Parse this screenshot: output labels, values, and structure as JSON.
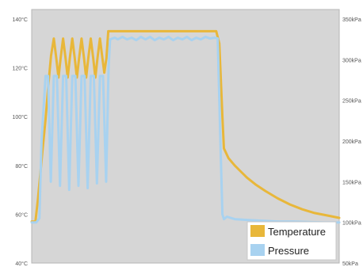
{
  "chart_data": {
    "type": "line",
    "title": "",
    "xlabel": "",
    "ylabel": "",
    "grid": false,
    "legend_position": "bottom-right",
    "x_range": [
      0,
      100
    ],
    "y_left": {
      "unit": "°C",
      "range": [
        40,
        140
      ],
      "ticks": [
        {
          "value": 140,
          "label": "140°C"
        },
        {
          "value": 120,
          "label": "120°C"
        },
        {
          "value": 100,
          "label": "100°C"
        },
        {
          "value": 80,
          "label": "80°C"
        },
        {
          "value": 60,
          "label": "60°C"
        },
        {
          "value": 40,
          "label": "40°C"
        }
      ]
    },
    "y_right": {
      "unit": "kPa",
      "range": [
        50,
        350
      ],
      "ticks": [
        {
          "value": 350,
          "label": "350kPa"
        },
        {
          "value": 300,
          "label": "300kPa"
        },
        {
          "value": 250,
          "label": "250kPa"
        },
        {
          "value": 200,
          "label": "200kPa"
        },
        {
          "value": 150,
          "label": "150kPa"
        },
        {
          "value": 100,
          "label": "100kPa"
        },
        {
          "value": 50,
          "label": "50kPa"
        }
      ]
    },
    "series": [
      {
        "name": "Temperature",
        "axis": "left",
        "color": "#E8B73A",
        "points": [
          [
            0,
            57
          ],
          [
            1.2,
            57
          ],
          [
            2,
            66
          ],
          [
            3.5,
            86
          ],
          [
            4.5,
            99
          ],
          [
            5.5,
            114
          ],
          [
            6.3,
            125
          ],
          [
            7.2,
            132
          ],
          [
            8,
            124
          ],
          [
            8.7,
            116
          ],
          [
            9.4,
            124
          ],
          [
            10.2,
            132
          ],
          [
            11,
            124
          ],
          [
            11.7,
            116
          ],
          [
            12.4,
            124
          ],
          [
            13.2,
            132
          ],
          [
            14,
            124
          ],
          [
            14.7,
            116
          ],
          [
            15.4,
            124
          ],
          [
            16.2,
            132
          ],
          [
            17,
            124
          ],
          [
            17.7,
            116
          ],
          [
            18.4,
            124
          ],
          [
            19.2,
            132
          ],
          [
            20,
            124
          ],
          [
            20.7,
            116
          ],
          [
            21.4,
            124
          ],
          [
            22.2,
            132
          ],
          [
            23,
            124
          ],
          [
            23.6,
            118
          ],
          [
            24.3,
            124
          ],
          [
            24.9,
            135
          ],
          [
            25.5,
            135
          ],
          [
            60,
            135
          ],
          [
            61,
            130
          ],
          [
            62,
            100
          ],
          [
            62.5,
            87
          ],
          [
            64,
            83
          ],
          [
            66,
            80
          ],
          [
            68,
            77.5
          ],
          [
            70,
            75
          ],
          [
            73,
            72
          ],
          [
            76,
            69.5
          ],
          [
            80,
            66.5
          ],
          [
            84,
            64
          ],
          [
            88,
            62
          ],
          [
            92,
            60.5
          ],
          [
            96,
            59.5
          ],
          [
            100,
            58.5
          ]
        ]
      },
      {
        "name": "Pressure",
        "axis": "right",
        "color": "#A8D2F0",
        "points": [
          [
            0,
            100
          ],
          [
            1.5,
            100
          ],
          [
            2.5,
            105
          ],
          [
            3.2,
            200
          ],
          [
            4.5,
            280
          ],
          [
            5.3,
            280
          ],
          [
            6.2,
            150
          ],
          [
            7.2,
            280
          ],
          [
            8.2,
            280
          ],
          [
            9.2,
            145
          ],
          [
            10.2,
            280
          ],
          [
            11.2,
            280
          ],
          [
            12.2,
            140
          ],
          [
            13.2,
            280
          ],
          [
            14.2,
            280
          ],
          [
            15.2,
            145
          ],
          [
            16.2,
            280
          ],
          [
            17.2,
            280
          ],
          [
            18.2,
            142
          ],
          [
            19.2,
            280
          ],
          [
            20.2,
            280
          ],
          [
            21.2,
            148
          ],
          [
            22.2,
            280
          ],
          [
            23.2,
            280
          ],
          [
            24.2,
            150
          ],
          [
            25,
            290
          ],
          [
            25.5,
            325
          ],
          [
            27,
            327
          ],
          [
            28,
            325
          ],
          [
            29.5,
            328
          ],
          [
            31,
            325
          ],
          [
            32.5,
            327
          ],
          [
            34,
            324
          ],
          [
            35.5,
            328
          ],
          [
            37,
            325
          ],
          [
            38.5,
            328
          ],
          [
            40,
            324
          ],
          [
            41.5,
            327
          ],
          [
            43,
            325
          ],
          [
            44.5,
            328
          ],
          [
            46,
            324
          ],
          [
            47.5,
            327
          ],
          [
            49,
            325
          ],
          [
            50.5,
            328
          ],
          [
            52,
            324
          ],
          [
            53.5,
            327
          ],
          [
            55,
            325
          ],
          [
            56.5,
            328
          ],
          [
            58,
            326
          ],
          [
            59.5,
            327
          ],
          [
            60.5,
            326
          ],
          [
            61.2,
            220
          ],
          [
            62,
            110
          ],
          [
            62.5,
            104
          ],
          [
            63.5,
            107
          ],
          [
            66,
            104
          ],
          [
            70,
            103
          ],
          [
            75,
            102
          ],
          [
            80,
            101
          ],
          [
            85,
            101
          ],
          [
            90,
            100.5
          ],
          [
            95,
            100
          ],
          [
            100,
            100
          ]
        ]
      }
    ]
  }
}
